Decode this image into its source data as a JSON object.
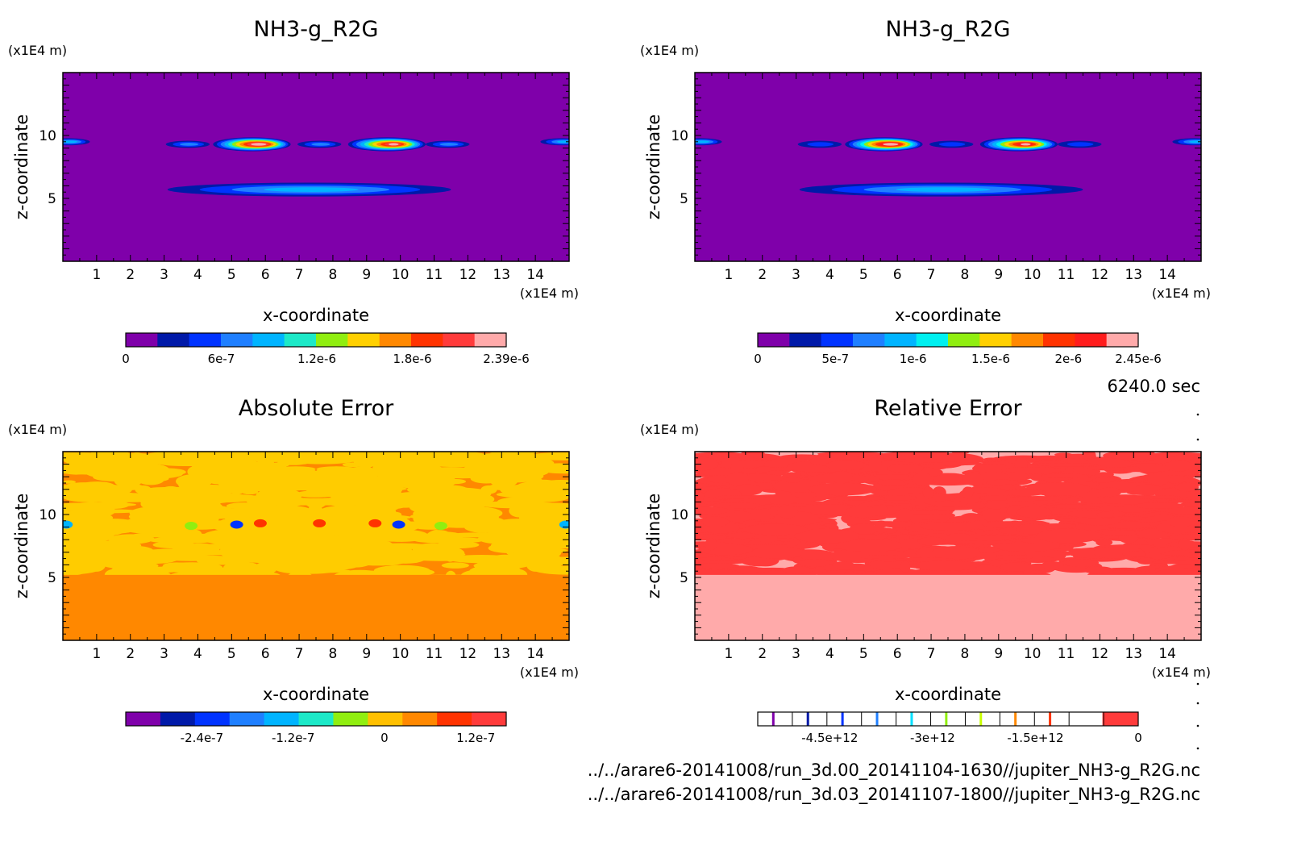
{
  "time_label": "6240.0 sec",
  "file_lines": [
    "../../arare6-20141008/run_3d.00_20141104-1630//jupiter_NH3-g_R2G.nc",
    "../../arare6-20141008/run_3d.03_20141107-1800//jupiter_NH3-g_R2G.nc"
  ],
  "chart_data": [
    {
      "type": "heatmap",
      "title": "NH3-g_R2G",
      "xlabel": "x-coordinate",
      "ylabel": "z-coordinate",
      "x_unit": "(x1E4 m)",
      "y_unit": "(x1E4 m)",
      "xlim": [
        0,
        15
      ],
      "ylim": [
        0,
        15
      ],
      "x_ticks": [
        1,
        2,
        3,
        4,
        5,
        6,
        7,
        8,
        9,
        10,
        11,
        12,
        13,
        14
      ],
      "y_ticks": [
        5,
        10
      ],
      "background": "#7f00aa",
      "colorbar": {
        "colors": [
          "#7f00aa",
          "#0019a8",
          "#0033ff",
          "#1f7fff",
          "#00b4ff",
          "#1de9c8",
          "#90ee10",
          "#ffd000",
          "#ff8800",
          "#ff3300",
          "#ff3b3b",
          "#ffaaaa"
        ],
        "tick_labels": [
          "0",
          "6e-7",
          "1.2e-6",
          "1.8e-6",
          "2.39e-6"
        ],
        "tick_values": [
          0,
          6e-07,
          1.2e-06,
          1.8e-06,
          2.39e-06
        ],
        "range": [
          0,
          2.39e-06
        ]
      },
      "features": [
        {
          "x": 0.15,
          "z": 9.5,
          "peak": 8e-07
        },
        {
          "x": 3.7,
          "z": 9.3,
          "peak": 5e-07
        },
        {
          "x": 5.6,
          "z": 9.3,
          "peak": 2.39e-06
        },
        {
          "x": 7.6,
          "z": 9.3,
          "peak": 5e-07
        },
        {
          "x": 9.6,
          "z": 9.3,
          "peak": 2.2e-06
        },
        {
          "x": 11.4,
          "z": 9.3,
          "peak": 5e-07
        },
        {
          "x": 14.8,
          "z": 9.5,
          "peak": 8e-07
        },
        {
          "x": 7.3,
          "z": 5.7,
          "peak": 8e-07
        }
      ]
    },
    {
      "type": "heatmap",
      "title": "NH3-g_R2G",
      "xlabel": "x-coordinate",
      "ylabel": "z-coordinate",
      "x_unit": "(x1E4 m)",
      "y_unit": "(x1E4 m)",
      "xlim": [
        0,
        15
      ],
      "ylim": [
        0,
        15
      ],
      "x_ticks": [
        1,
        2,
        3,
        4,
        5,
        6,
        7,
        8,
        9,
        10,
        11,
        12,
        13,
        14
      ],
      "y_ticks": [
        5,
        10
      ],
      "background": "#7f00aa",
      "colorbar": {
        "colors": [
          "#7f00aa",
          "#0019a8",
          "#0033ff",
          "#1f7fff",
          "#00b4ff",
          "#00f0f0",
          "#90ee10",
          "#ffd000",
          "#ff8800",
          "#ff3300",
          "#ff1c1c",
          "#ffaaaa"
        ],
        "tick_labels": [
          "0",
          "5e-7",
          "1e-6",
          "1.5e-6",
          "2e-6",
          "2.45e-6"
        ],
        "tick_values": [
          0,
          5e-07,
          1e-06,
          1.5e-06,
          2e-06,
          2.45e-06
        ],
        "range": [
          0,
          2.45e-06
        ]
      },
      "features": [
        {
          "x": 0.15,
          "z": 9.5,
          "peak": 8e-07
        },
        {
          "x": 3.7,
          "z": 9.3,
          "peak": 5e-07
        },
        {
          "x": 5.6,
          "z": 9.3,
          "peak": 2.45e-06
        },
        {
          "x": 7.6,
          "z": 9.3,
          "peak": 5e-07
        },
        {
          "x": 9.6,
          "z": 9.3,
          "peak": 2.2e-06
        },
        {
          "x": 11.4,
          "z": 9.3,
          "peak": 5e-07
        },
        {
          "x": 14.8,
          "z": 9.5,
          "peak": 8e-07
        },
        {
          "x": 7.3,
          "z": 5.7,
          "peak": 8e-07
        }
      ]
    },
    {
      "type": "heatmap",
      "title": "Absolute Error",
      "xlabel": "x-coordinate",
      "ylabel": "z-coordinate",
      "x_unit": "(x1E4 m)",
      "y_unit": "(x1E4 m)",
      "xlim": [
        0,
        15
      ],
      "ylim": [
        0,
        15
      ],
      "x_ticks": [
        1,
        2,
        3,
        4,
        5,
        6,
        7,
        8,
        9,
        10,
        11,
        12,
        13,
        14
      ],
      "y_ticks": [
        5,
        10
      ],
      "background": "#ff8800",
      "pattern_color": "#ffcc00",
      "colorbar": {
        "colors": [
          "#7f00aa",
          "#0019a8",
          "#0033ff",
          "#1f7fff",
          "#00b4ff",
          "#1de9c8",
          "#90ee10",
          "#ffc000",
          "#ff8800",
          "#ff3300",
          "#ff3b3b"
        ],
        "tick_labels": [
          "-2.4e-7",
          "-1.2e-7",
          "0",
          "1.2e-7"
        ],
        "tick_values": [
          -2.4e-07,
          -1.2e-07,
          0,
          1.2e-07
        ]
      }
    },
    {
      "type": "heatmap",
      "title": "Relative Error",
      "xlabel": "x-coordinate",
      "ylabel": "z-coordinate",
      "x_unit": "(x1E4 m)",
      "y_unit": "(x1E4 m)",
      "xlim": [
        0,
        15
      ],
      "ylim": [
        0,
        15
      ],
      "x_ticks": [
        1,
        2,
        3,
        4,
        5,
        6,
        7,
        8,
        9,
        10,
        11,
        12,
        13,
        14
      ],
      "y_ticks": [
        5,
        10
      ],
      "background": "#ffaaaa",
      "pattern_color": "#ff3b3b",
      "colorbar": {
        "colors": [
          "#ffffff",
          "#ffffff",
          "#ffffff",
          "#ffffff",
          "#ffffff",
          "#ffffff",
          "#ffffff",
          "#ffffff",
          "#ffffff",
          "#ffffff",
          "#ff3b3b"
        ],
        "separator_colors": [
          "#7f00aa",
          "#0019a8",
          "#0033ff",
          "#1f7fff",
          "#00e0ff",
          "#90ee10",
          "#c8ff00",
          "#ff8800",
          "#ff3300",
          "#ff3b3b"
        ],
        "tick_labels": [
          "-4.5e+12",
          "-3e+12",
          "-1.5e+12",
          "0"
        ],
        "tick_values": [
          -4500000000000.0,
          -3000000000000.0,
          -1500000000000.0,
          0
        ]
      }
    }
  ]
}
